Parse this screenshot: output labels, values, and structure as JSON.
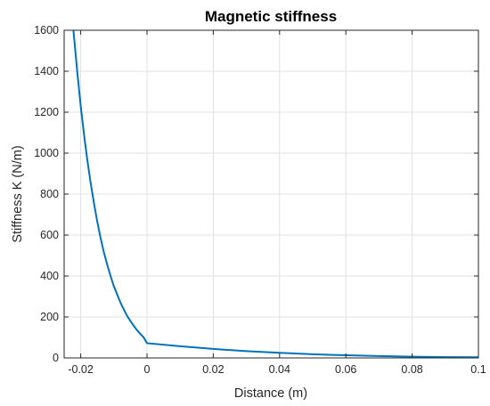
{
  "chart_data": {
    "type": "line",
    "title": "Magnetic stiffness",
    "xlabel": "Distance (m)",
    "ylabel": "Stiffness K (N/m)",
    "xlim": [
      -0.025,
      0.1
    ],
    "ylim": [
      0,
      1600
    ],
    "xticks": [
      -0.02,
      0,
      0.02,
      0.04,
      0.06,
      0.08,
      0.1
    ],
    "xtick_labels": [
      "-0.02",
      "0",
      "0.02",
      "0.04",
      "0.06",
      "0.08",
      "0.1"
    ],
    "yticks": [
      0,
      200,
      400,
      600,
      800,
      1000,
      1200,
      1400,
      1600
    ],
    "ytick_labels": [
      "0",
      "200",
      "400",
      "600",
      "800",
      "1000",
      "1200",
      "1400",
      "1600"
    ],
    "grid": true,
    "series": [
      {
        "color": "#0072bd",
        "x": [
          -0.0222,
          -0.021,
          -0.02,
          -0.019,
          -0.018,
          -0.017,
          -0.016,
          -0.015,
          -0.014,
          -0.013,
          -0.012,
          -0.011,
          -0.01,
          -0.009,
          -0.008,
          -0.007,
          -0.006,
          -0.005,
          -0.004,
          -0.003,
          -0.002,
          -0.001,
          0,
          0.01,
          0.02,
          0.03,
          0.04,
          0.05,
          0.06,
          0.07,
          0.08,
          0.09,
          0.1
        ],
        "y": [
          1600,
          1390,
          1230,
          1090,
          965,
          855,
          755,
          665,
          585,
          515,
          455,
          400,
          350,
          310,
          270,
          237,
          205,
          180,
          157,
          135,
          117,
          100,
          72,
          57,
          44,
          33,
          25,
          18,
          13,
          9,
          6,
          4,
          3
        ]
      }
    ]
  }
}
